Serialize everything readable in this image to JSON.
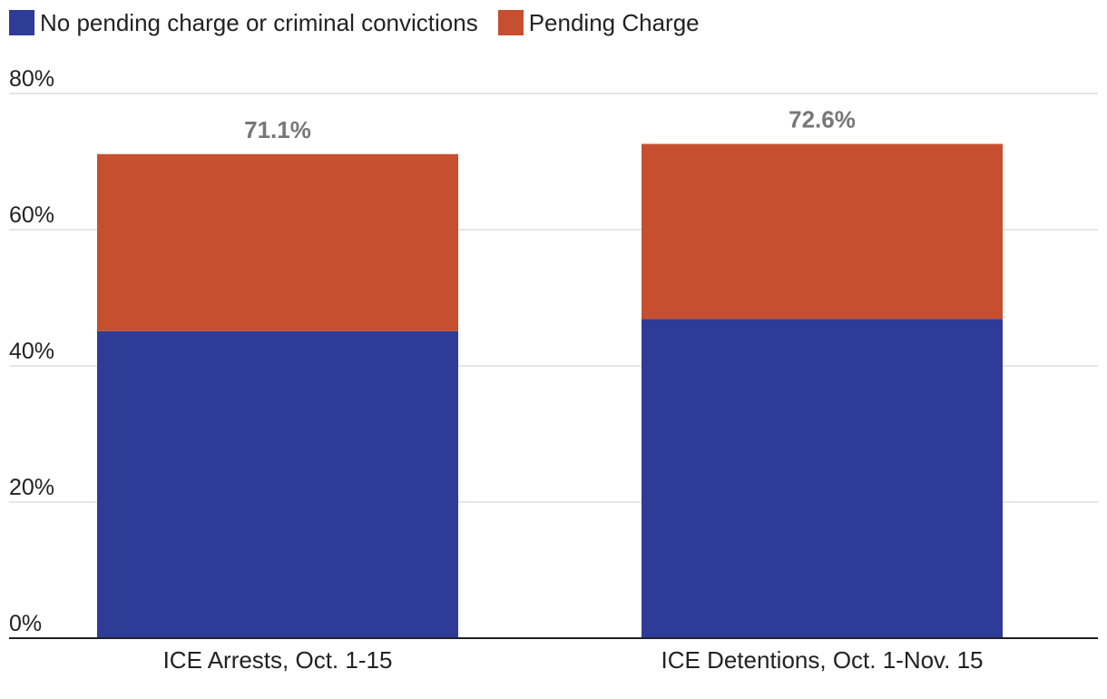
{
  "chart_data": {
    "type": "bar",
    "stacked": true,
    "title": "",
    "xlabel": "",
    "ylabel": "",
    "categories": [
      "ICE Arrests, Oct. 1-15",
      "ICE Detentions, Oct. 1-Nov. 15"
    ],
    "series": [
      {
        "name": "No pending charge or criminal convictions",
        "values": [
          45.1,
          46.9
        ],
        "color": "#2e3c97"
      },
      {
        "name": "Pending Charge",
        "values": [
          26.0,
          25.7
        ],
        "color": "#c64f2f"
      }
    ],
    "totals": [
      71.1,
      72.6
    ],
    "total_labels": [
      "71.1%",
      "72.6%"
    ],
    "ylim": [
      0,
      80
    ],
    "yticks": [
      0,
      20,
      40,
      60,
      80
    ],
    "ytick_labels": [
      "0%",
      "20%",
      "40%",
      "60%",
      "80%"
    ],
    "grid": true,
    "legend_position": "top-left"
  },
  "colors": {
    "grid": "#dddddd",
    "axis": "#222222",
    "total_label": "#777777"
  }
}
